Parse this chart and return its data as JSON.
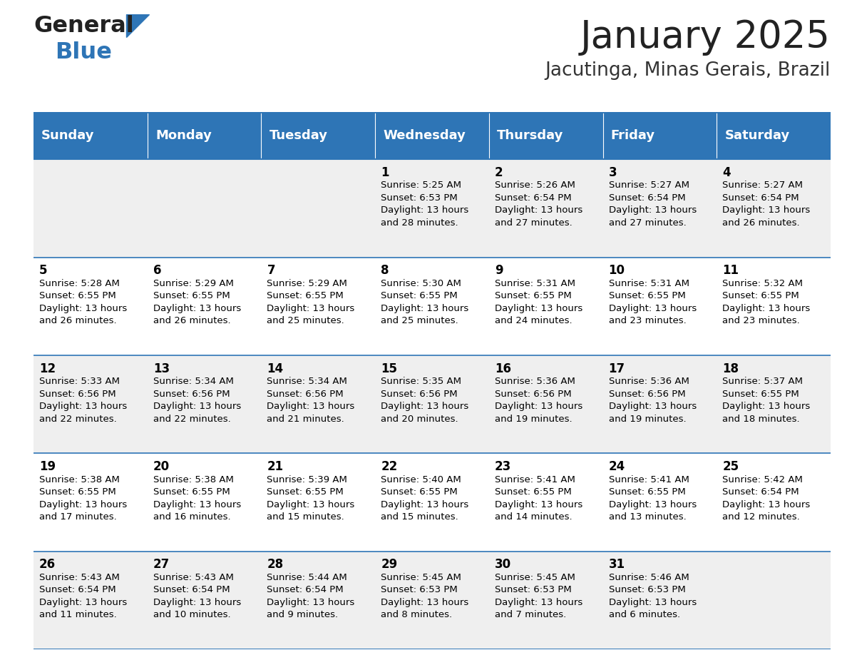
{
  "title": "January 2025",
  "subtitle": "Jacutinga, Minas Gerais, Brazil",
  "header_bg": "#2E75B6",
  "header_text_color": "#FFFFFF",
  "row_bg_odd": "#EFEFEF",
  "row_bg_even": "#FFFFFF",
  "cell_text_color": "#000000",
  "border_color": "#2E75B6",
  "days_of_week": [
    "Sunday",
    "Monday",
    "Tuesday",
    "Wednesday",
    "Thursday",
    "Friday",
    "Saturday"
  ],
  "weeks": [
    [
      {
        "day": "",
        "info": ""
      },
      {
        "day": "",
        "info": ""
      },
      {
        "day": "",
        "info": ""
      },
      {
        "day": "1",
        "info": "Sunrise: 5:25 AM\nSunset: 6:53 PM\nDaylight: 13 hours\nand 28 minutes."
      },
      {
        "day": "2",
        "info": "Sunrise: 5:26 AM\nSunset: 6:54 PM\nDaylight: 13 hours\nand 27 minutes."
      },
      {
        "day": "3",
        "info": "Sunrise: 5:27 AM\nSunset: 6:54 PM\nDaylight: 13 hours\nand 27 minutes."
      },
      {
        "day": "4",
        "info": "Sunrise: 5:27 AM\nSunset: 6:54 PM\nDaylight: 13 hours\nand 26 minutes."
      }
    ],
    [
      {
        "day": "5",
        "info": "Sunrise: 5:28 AM\nSunset: 6:55 PM\nDaylight: 13 hours\nand 26 minutes."
      },
      {
        "day": "6",
        "info": "Sunrise: 5:29 AM\nSunset: 6:55 PM\nDaylight: 13 hours\nand 26 minutes."
      },
      {
        "day": "7",
        "info": "Sunrise: 5:29 AM\nSunset: 6:55 PM\nDaylight: 13 hours\nand 25 minutes."
      },
      {
        "day": "8",
        "info": "Sunrise: 5:30 AM\nSunset: 6:55 PM\nDaylight: 13 hours\nand 25 minutes."
      },
      {
        "day": "9",
        "info": "Sunrise: 5:31 AM\nSunset: 6:55 PM\nDaylight: 13 hours\nand 24 minutes."
      },
      {
        "day": "10",
        "info": "Sunrise: 5:31 AM\nSunset: 6:55 PM\nDaylight: 13 hours\nand 23 minutes."
      },
      {
        "day": "11",
        "info": "Sunrise: 5:32 AM\nSunset: 6:55 PM\nDaylight: 13 hours\nand 23 minutes."
      }
    ],
    [
      {
        "day": "12",
        "info": "Sunrise: 5:33 AM\nSunset: 6:56 PM\nDaylight: 13 hours\nand 22 minutes."
      },
      {
        "day": "13",
        "info": "Sunrise: 5:34 AM\nSunset: 6:56 PM\nDaylight: 13 hours\nand 22 minutes."
      },
      {
        "day": "14",
        "info": "Sunrise: 5:34 AM\nSunset: 6:56 PM\nDaylight: 13 hours\nand 21 minutes."
      },
      {
        "day": "15",
        "info": "Sunrise: 5:35 AM\nSunset: 6:56 PM\nDaylight: 13 hours\nand 20 minutes."
      },
      {
        "day": "16",
        "info": "Sunrise: 5:36 AM\nSunset: 6:56 PM\nDaylight: 13 hours\nand 19 minutes."
      },
      {
        "day": "17",
        "info": "Sunrise: 5:36 AM\nSunset: 6:56 PM\nDaylight: 13 hours\nand 19 minutes."
      },
      {
        "day": "18",
        "info": "Sunrise: 5:37 AM\nSunset: 6:55 PM\nDaylight: 13 hours\nand 18 minutes."
      }
    ],
    [
      {
        "day": "19",
        "info": "Sunrise: 5:38 AM\nSunset: 6:55 PM\nDaylight: 13 hours\nand 17 minutes."
      },
      {
        "day": "20",
        "info": "Sunrise: 5:38 AM\nSunset: 6:55 PM\nDaylight: 13 hours\nand 16 minutes."
      },
      {
        "day": "21",
        "info": "Sunrise: 5:39 AM\nSunset: 6:55 PM\nDaylight: 13 hours\nand 15 minutes."
      },
      {
        "day": "22",
        "info": "Sunrise: 5:40 AM\nSunset: 6:55 PM\nDaylight: 13 hours\nand 15 minutes."
      },
      {
        "day": "23",
        "info": "Sunrise: 5:41 AM\nSunset: 6:55 PM\nDaylight: 13 hours\nand 14 minutes."
      },
      {
        "day": "24",
        "info": "Sunrise: 5:41 AM\nSunset: 6:55 PM\nDaylight: 13 hours\nand 13 minutes."
      },
      {
        "day": "25",
        "info": "Sunrise: 5:42 AM\nSunset: 6:54 PM\nDaylight: 13 hours\nand 12 minutes."
      }
    ],
    [
      {
        "day": "26",
        "info": "Sunrise: 5:43 AM\nSunset: 6:54 PM\nDaylight: 13 hours\nand 11 minutes."
      },
      {
        "day": "27",
        "info": "Sunrise: 5:43 AM\nSunset: 6:54 PM\nDaylight: 13 hours\nand 10 minutes."
      },
      {
        "day": "28",
        "info": "Sunrise: 5:44 AM\nSunset: 6:54 PM\nDaylight: 13 hours\nand 9 minutes."
      },
      {
        "day": "29",
        "info": "Sunrise: 5:45 AM\nSunset: 6:53 PM\nDaylight: 13 hours\nand 8 minutes."
      },
      {
        "day": "30",
        "info": "Sunrise: 5:45 AM\nSunset: 6:53 PM\nDaylight: 13 hours\nand 7 minutes."
      },
      {
        "day": "31",
        "info": "Sunrise: 5:46 AM\nSunset: 6:53 PM\nDaylight: 13 hours\nand 6 minutes."
      },
      {
        "day": "",
        "info": ""
      }
    ]
  ],
  "logo_general_color": "#222222",
  "logo_blue_color": "#2E75B6",
  "title_fontsize": 38,
  "subtitle_fontsize": 19,
  "header_fontsize": 13,
  "day_num_fontsize": 12,
  "cell_info_fontsize": 9.5
}
